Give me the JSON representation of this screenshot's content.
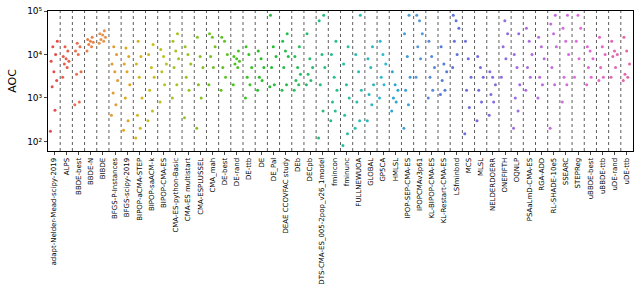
{
  "chart_data": {
    "type": "scatter",
    "y_label": "AOC",
    "log": "y",
    "ylim": [
      60,
      100000
    ],
    "yticks": [
      {
        "value": 100,
        "label": "10²"
      },
      {
        "value": 1000,
        "label": "10³"
      },
      {
        "value": 10000,
        "label": "10⁴"
      },
      {
        "value": 100000,
        "label": "10⁵"
      }
    ],
    "categories": [
      "adapt-Nelder-Mead-scipy-2019",
      "ALPS",
      "BBDE-best",
      "BBDE-N",
      "BIBDE",
      "BFGS-P-Instances",
      "BFGS-scipy-2019",
      "BIPOP-aCMA-STEP",
      "BIPOP-saACM-k",
      "BIPOP-CMA-ES",
      "CMA-ES-python-Basic",
      "CMA-ES multistart",
      "CMA-ESPLUSSEL",
      "CMA_mah",
      "DE-best",
      "DE-rand",
      "DE-ttb",
      "DE",
      "DE_Pal",
      "DEAE CCOVFAC study",
      "DEb",
      "DECpb",
      "DTS-CMA-ES_005-2pop_v26_1model",
      "fmincon",
      "fminunc",
      "FULLNEWUOA",
      "GLOBAL",
      "GP5CA",
      "HMLSL",
      "IPOP-SEP-CMA-ES",
      "IPOPCMAv3p61",
      "KL-BIPOP-CMA-ES",
      "KL-Restart-CMA-ES",
      "LSfminbnd",
      "MCS",
      "MLSL",
      "NELDERDOERR",
      "ONEFIFTH",
      "OQNLP",
      "PSAaLmD-CMA-ES",
      "RGA-ADD",
      "RL-SHADE-10e5",
      "SSEARC",
      "STEPReg",
      "uBBDE-best",
      "uBBDE-ttb",
      "uDE-rand",
      "uDE-ttb"
    ],
    "values": [
      [
        170,
        520,
        1800,
        2500,
        4000,
        7000,
        10000,
        15000,
        20000
      ],
      [
        3000,
        5000,
        6000,
        7000,
        8000,
        9000,
        12000,
        15000
      ],
      [
        700,
        800,
        3500,
        4000,
        10000,
        12000,
        15000,
        18000
      ],
      [
        12000,
        15000,
        17000,
        19000,
        20000,
        22000,
        25000
      ],
      [
        18000,
        20000,
        22000,
        25000,
        28000,
        30000,
        35000
      ],
      [
        400,
        700,
        1300,
        2500,
        4000,
        6000,
        10000,
        15000
      ],
      [
        180,
        300,
        1000,
        2000,
        4000,
        6000,
        9000,
        14000
      ],
      [
        120,
        200,
        400,
        1000,
        3000,
        6000,
        9000,
        20000
      ],
      [
        300,
        500,
        1500,
        3000,
        5000,
        10000,
        17000
      ],
      [
        800,
        2000,
        4000,
        6000,
        9000,
        13000
      ],
      [
        1000,
        2000,
        5000,
        8000,
        12000,
        20000,
        30000
      ],
      [
        350,
        1500,
        3000,
        6000,
        10000,
        15000
      ],
      [
        200,
        1000,
        2000,
        5000,
        9000,
        25000
      ],
      [
        2000,
        5000,
        9000,
        15000,
        25000,
        30000
      ],
      [
        1500,
        3000,
        5000,
        10000,
        20000,
        25000
      ],
      [
        2000,
        5000,
        6000,
        7000,
        8000,
        9000,
        12000
      ],
      [
        1000,
        2000,
        3000,
        5000,
        10000,
        15000
      ],
      [
        1500,
        2500,
        3000,
        5000,
        8000,
        12000
      ],
      [
        1800,
        2000,
        5000,
        9000,
        15000,
        80000
      ],
      [
        1500,
        2000,
        5000,
        9000,
        12000,
        20000,
        30000
      ],
      [
        1500,
        2000,
        2500,
        3500,
        5000,
        9000,
        15000
      ],
      [
        2000,
        2500,
        3500,
        5000,
        8000,
        30000
      ],
      [
        120,
        500,
        2000,
        5000,
        10000,
        60000,
        80000
      ],
      [
        300,
        500,
        800,
        1500,
        3000,
        10000,
        20000
      ],
      [
        80,
        150,
        400,
        1000,
        2000,
        6000,
        15000
      ],
      [
        200,
        300,
        800,
        1500,
        4000,
        10000,
        80000
      ],
      [
        300,
        700,
        1200,
        2000,
        5000,
        8000,
        15000
      ],
      [
        1000,
        2000,
        3000,
        6000,
        10000,
        20000
      ],
      [
        500,
        800,
        1000,
        1500,
        2000,
        4000
      ],
      [
        200,
        700,
        1500,
        3000,
        9000,
        30000,
        80000
      ],
      [
        3000,
        8000,
        15000,
        30000,
        60000,
        80000
      ],
      [
        1000,
        1500,
        3000,
        5000,
        9000,
        20000
      ],
      [
        1200,
        1500,
        2500,
        4000,
        6000,
        15000
      ],
      [
        5000,
        10000,
        20000,
        40000,
        60000,
        80000
      ],
      [
        150,
        600,
        1500,
        3000,
        8000,
        20000
      ],
      [
        300,
        800,
        1500,
        3000,
        5000,
        9000
      ],
      [
        400,
        800,
        1200,
        2000,
        3000,
        4000
      ],
      [
        3000,
        8000,
        15000,
        30000,
        60000
      ],
      [
        200,
        500,
        1000,
        2000,
        5000,
        10000,
        30000
      ],
      [
        1500,
        3000,
        5000,
        10000,
        20000,
        40000
      ],
      [
        1000,
        2000,
        3000,
        8000,
        15000,
        25000
      ],
      [
        200,
        2000,
        5000,
        15000,
        30000,
        50000,
        80000
      ],
      [
        800,
        2000,
        3000,
        10000,
        20000,
        40000,
        80000
      ],
      [
        3000,
        8000,
        20000,
        40000,
        80000
      ],
      [
        2000,
        3000,
        5000,
        8000,
        12000,
        15000
      ],
      [
        2500,
        3000,
        5000,
        10000,
        15000,
        25000
      ],
      [
        3000,
        5000,
        9000,
        10000,
        12000,
        20000
      ],
      [
        2500,
        3000,
        3500,
        6000,
        12000,
        25000
      ]
    ],
    "colors": [
      "hsl(0,75%,60%)",
      "hsl(7,75%,60%)",
      "hsl(14,75%,60%)",
      "hsl(21,75%,60%)",
      "hsl(28,75%,60%)",
      "hsl(35,75%,55%)",
      "hsl(42,75%,50%)",
      "hsl(49,75%,48%)",
      "hsl(56,75%,45%)",
      "hsl(63,70%,45%)",
      "hsl(70,70%,45%)",
      "hsl(77,70%,45%)",
      "hsl(84,70%,45%)",
      "hsl(91,70%,45%)",
      "hsl(98,70%,45%)",
      "hsl(105,70%,45%)",
      "hsl(112,70%,45%)",
      "hsl(119,65%,45%)",
      "hsl(126,65%,45%)",
      "hsl(133,65%,45%)",
      "hsl(140,65%,45%)",
      "hsl(147,65%,45%)",
      "hsl(154,65%,45%)",
      "hsl(161,65%,45%)",
      "hsl(168,65%,45%)",
      "hsl(175,65%,45%)",
      "hsl(182,65%,45%)",
      "hsl(189,65%,50%)",
      "hsl(196,65%,50%)",
      "hsl(203,65%,55%)",
      "hsl(210,65%,60%)",
      "hsl(217,65%,60%)",
      "hsl(224,65%,60%)",
      "hsl(231,65%,62%)",
      "hsl(238,65%,65%)",
      "hsl(245,65%,65%)",
      "hsl(252,65%,65%)",
      "hsl(259,65%,65%)",
      "hsl(266,65%,65%)",
      "hsl(273,65%,65%)",
      "hsl(280,65%,65%)",
      "hsl(287,65%,65%)",
      "hsl(294,65%,65%)",
      "hsl(301,65%,65%)",
      "hsl(308,70%,65%)",
      "hsl(315,70%,65%)",
      "hsl(322,70%,65%)",
      "hsl(329,70%,65%)"
    ]
  }
}
